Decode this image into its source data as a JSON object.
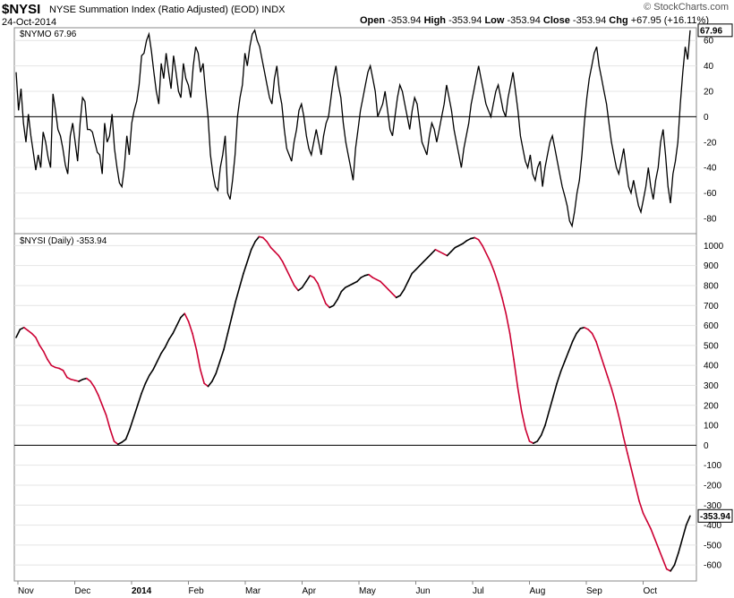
{
  "header": {
    "symbol": "$NYSI",
    "description": "NYSE Summation Index (Ratio Adjusted) (EOD)",
    "exchange": "INDX",
    "date": "24-Oct-2014",
    "open_label": "Open",
    "open": "-353.94",
    "high_label": "High",
    "high": "-353.94",
    "low_label": "Low",
    "low": "-353.94",
    "close_label": "Close",
    "close": "-353.94",
    "chg_label": "Chg",
    "chg": "+67.95 (+16.11%)",
    "credit": "© StockCharts.com"
  },
  "colors": {
    "up": "#000000",
    "down": "#cc0033",
    "grid": "#e4e4e4",
    "zero": "#000000"
  },
  "chart_data": [
    {
      "type": "line",
      "title": "$NYMO 67.96",
      "current_value_tag": "67.96",
      "ylim": [
        -92,
        70
      ],
      "yticks": [
        60,
        40,
        20,
        0,
        -20,
        -40,
        -60,
        -80
      ],
      "ytick_labels": [
        "60",
        "40",
        "20",
        "0",
        "-20",
        "-40",
        "-60",
        "-80"
      ],
      "zero_line": true,
      "series": [
        {
          "values": [
            35,
            5,
            22,
            -5,
            -20,
            2,
            -15,
            -28,
            -42,
            -30,
            -40,
            -12,
            -20,
            -32,
            -40,
            18,
            5,
            -10,
            -15,
            -25,
            -38,
            -45,
            -15,
            -5,
            -20,
            -35,
            -5,
            15,
            12,
            -10,
            -10,
            -12,
            -20,
            -28,
            -30,
            -45,
            -5,
            -20,
            -15,
            2,
            -25,
            -40,
            -52,
            -55,
            -40,
            -15,
            -30,
            -5,
            5,
            12,
            25,
            48,
            50,
            60,
            65,
            52,
            35,
            20,
            10,
            42,
            30,
            50,
            35,
            22,
            48,
            35,
            20,
            15,
            42,
            30,
            25,
            15,
            40,
            55,
            50,
            35,
            42,
            20,
            0,
            -30,
            -45,
            -55,
            -58,
            -40,
            -30,
            -15,
            -60,
            -65,
            -50,
            -30,
            0,
            15,
            25,
            50,
            40,
            55,
            65,
            68,
            60,
            55,
            45,
            35,
            25,
            15,
            10,
            30,
            40,
            20,
            10,
            -10,
            -25,
            -30,
            -35,
            -20,
            -10,
            5,
            10,
            0,
            -15,
            -25,
            -30,
            -20,
            -10,
            -20,
            -30,
            -15,
            -5,
            0,
            15,
            30,
            40,
            25,
            15,
            -5,
            -20,
            -30,
            -40,
            -50,
            -25,
            -10,
            5,
            15,
            25,
            35,
            40,
            30,
            20,
            0,
            5,
            10,
            20,
            5,
            -10,
            -15,
            0,
            15,
            25,
            20,
            10,
            0,
            -10,
            5,
            15,
            10,
            -5,
            -20,
            -25,
            -30,
            -15,
            -5,
            -10,
            -20,
            -10,
            0,
            10,
            25,
            15,
            5,
            -10,
            -20,
            -30,
            -40,
            -25,
            -15,
            -5,
            10,
            20,
            30,
            40,
            30,
            20,
            10,
            5,
            0,
            10,
            20,
            25,
            15,
            5,
            0,
            15,
            25,
            35,
            20,
            5,
            -15,
            -25,
            -35,
            -40,
            -30,
            -45,
            -50,
            -40,
            -35,
            -55,
            -40,
            -30,
            -20,
            -15,
            -25,
            -35,
            -45,
            -55,
            -62,
            -70,
            -82,
            -86,
            -75,
            -60,
            -50,
            -30,
            -5,
            15,
            30,
            40,
            50,
            55,
            40,
            30,
            20,
            10,
            -5,
            -20,
            -30,
            -40,
            -45,
            -35,
            -25,
            -40,
            -55,
            -60,
            -50,
            -60,
            -70,
            -75,
            -65,
            -55,
            -40,
            -55,
            -65,
            -50,
            -40,
            -20,
            -10,
            -30,
            -55,
            -68,
            -45,
            -35,
            -20,
            10,
            35,
            55,
            45,
            68
          ]
        }
      ]
    },
    {
      "type": "line",
      "title": "$NYSI (Daily) -353.94",
      "current_value_tag": "-353.94",
      "ylim": [
        -680,
        1060
      ],
      "yticks": [
        1000,
        900,
        800,
        700,
        600,
        500,
        400,
        300,
        200,
        100,
        0,
        -100,
        -200,
        -300,
        -400,
        -500,
        -600
      ],
      "ytick_labels": [
        "1000",
        "900",
        "800",
        "700",
        "600",
        "500",
        "400",
        "300",
        "200",
        "100",
        "0",
        "-100",
        "-200",
        "-300",
        "-400",
        "-500",
        "-600"
      ],
      "zero_line": true,
      "series": [
        {
          "name": "$NYSI (Daily)",
          "values": [
            540,
            580,
            590,
            575,
            560,
            540,
            500,
            470,
            430,
            400,
            390,
            385,
            375,
            340,
            330,
            325,
            320,
            330,
            335,
            320,
            290,
            250,
            200,
            150,
            80,
            20,
            5,
            15,
            30,
            80,
            140,
            200,
            260,
            310,
            350,
            380,
            420,
            460,
            490,
            530,
            560,
            600,
            640,
            660,
            620,
            560,
            480,
            380,
            310,
            295,
            320,
            360,
            420,
            480,
            560,
            640,
            720,
            790,
            860,
            920,
            980,
            1020,
            1045,
            1040,
            1020,
            990,
            970,
            950,
            920,
            880,
            840,
            800,
            775,
            790,
            820,
            850,
            840,
            810,
            760,
            710,
            690,
            700,
            730,
            770,
            790,
            800,
            810,
            820,
            840,
            850,
            855,
            840,
            830,
            820,
            800,
            780,
            760,
            740,
            750,
            780,
            820,
            860,
            880,
            900,
            920,
            940,
            960,
            980,
            970,
            960,
            950,
            970,
            990,
            1000,
            1010,
            1025,
            1035,
            1040,
            1030,
            1000,
            960,
            920,
            870,
            810,
            740,
            660,
            560,
            430,
            290,
            170,
            80,
            20,
            10,
            20,
            50,
            100,
            170,
            240,
            310,
            370,
            420,
            470,
            520,
            560,
            585,
            590,
            580,
            560,
            520,
            460,
            400,
            340,
            280,
            210,
            130,
            40,
            -40,
            -120,
            -200,
            -280,
            -340,
            -380,
            -420,
            -470,
            -520,
            -570,
            -620,
            -630,
            -600,
            -540,
            -470,
            -400,
            -354
          ]
        }
      ]
    }
  ],
  "x_axis": {
    "labels": [
      "Nov",
      "Dec",
      "2014",
      "Feb",
      "Mar",
      "Apr",
      "May",
      "Jun",
      "Jul",
      "Aug",
      "Sep",
      "Oct"
    ]
  }
}
